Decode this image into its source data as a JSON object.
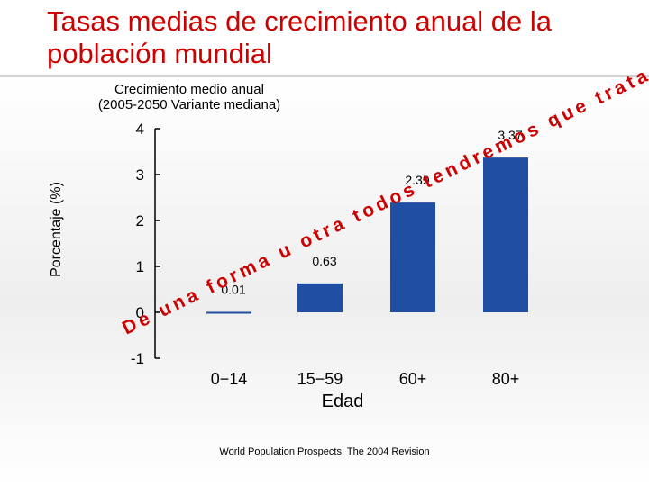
{
  "slide": {
    "title": "Tasas medias de crecimiento anual de la población mundial",
    "source": "World Population Prospects, The 2004 Revision",
    "overlay_text": "De una forma u otra todos tendremos que tratar con la “demencia”"
  },
  "colors": {
    "title": "#cc0000",
    "bar": "#1f4ea3",
    "overlay_text": "#cc0000"
  },
  "chart_data": {
    "type": "bar",
    "subtitle": "Crecimiento medio anual\n(2005-2050 Variante mediana)",
    "xlabel": "Edad",
    "ylabel": "Porcentaje (%)",
    "categories": [
      "0−14",
      "15−59",
      "60+",
      "80+"
    ],
    "values": [
      0.01,
      0.63,
      2.39,
      3.37
    ],
    "data_labels": [
      "0.01",
      "0.63",
      "2.39",
      "3.37"
    ],
    "yticks": [
      "-1",
      "0",
      "1",
      "2",
      "3",
      "4"
    ],
    "ylim": [
      -1,
      4
    ],
    "grid": false
  }
}
